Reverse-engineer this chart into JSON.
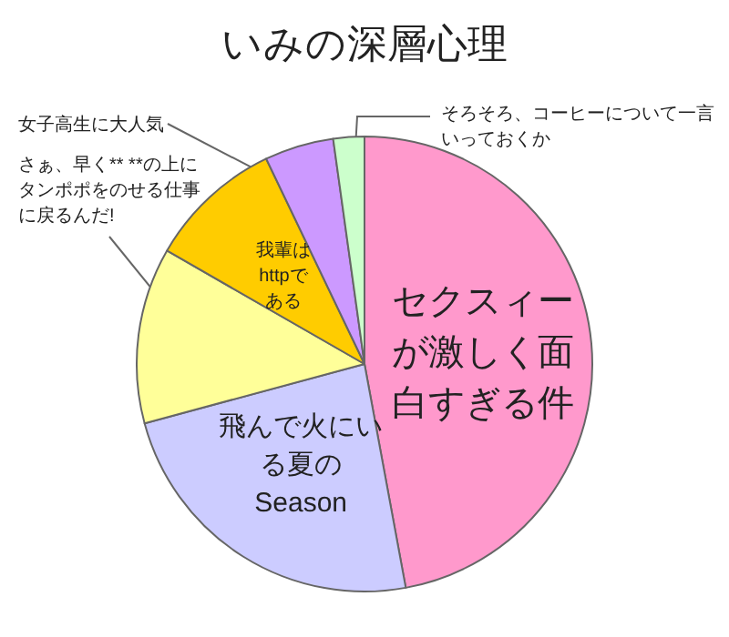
{
  "chart_data": {
    "type": "pie",
    "title": "いみの深層心理",
    "categories": [
      "セクスィーが激しく面白すぎる件",
      "飛んで火にいる夏のSeason",
      "さぁ、早く** **の上にタンポポをのせる仕事に戻るんだ!",
      "我輩はhttpである",
      "女子高生に大人気",
      "そろそろ、コーヒーについて一言いっておくか"
    ],
    "values": [
      47.1,
      23.7,
      12.5,
      9.6,
      4.9,
      2.2
    ],
    "colors": [
      "#ff99cc",
      "#ccccff",
      "#ffff99",
      "#ffcc00",
      "#cc99ff",
      "#ccffcc"
    ],
    "legend": false
  }
}
